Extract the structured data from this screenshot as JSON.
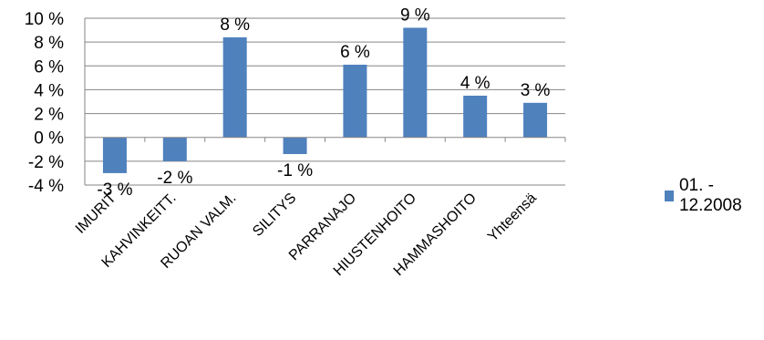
{
  "chart_data": {
    "type": "bar",
    "categories": [
      "IMURIT",
      "KAHVINKEITT.",
      "RUOAN VALM.",
      "SILITYS",
      "PARRANAJO",
      "HIUSTENHOITO",
      "HAMMASHOITO",
      "Yhteensä"
    ],
    "series": [
      {
        "name": "01. - 12.2008",
        "values": [
          -3.0,
          -2.0,
          8.4,
          -1.4,
          6.1,
          9.2,
          3.5,
          2.9
        ],
        "data_labels": [
          "-3 %",
          "-2 %",
          "8 %",
          "-1 %",
          "6 %",
          "9 %",
          "4 %",
          "3 %"
        ],
        "color": "#4F81BD"
      }
    ],
    "ylim": [
      -4,
      10
    ],
    "y_ticks": [
      10,
      8,
      6,
      4,
      2,
      0,
      -2,
      -4
    ],
    "y_tick_labels": [
      "10 %",
      "8 %",
      "6 %",
      "4 %",
      "2 %",
      "0 %",
      "-2 %",
      "-4 %"
    ],
    "grid": true,
    "legend_position": "right"
  }
}
